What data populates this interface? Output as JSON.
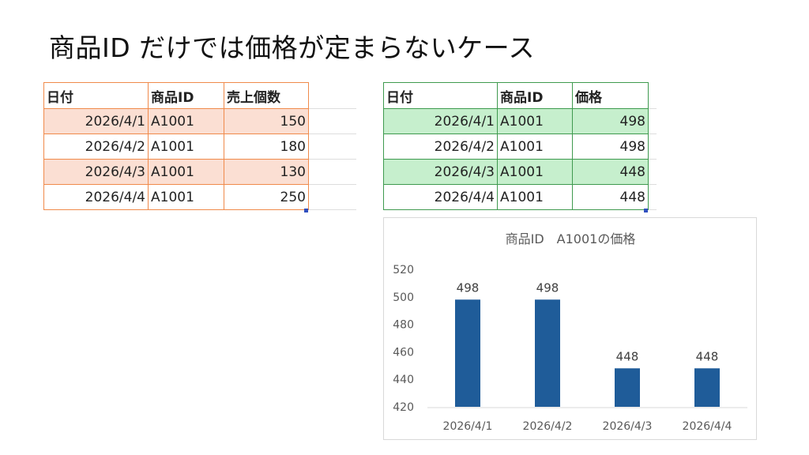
{
  "title": "商品ID だけでは価格が定まらないケース",
  "sales_table": {
    "headers": [
      "日付",
      "商品ID",
      "売上個数"
    ],
    "rows": [
      [
        "2026/4/1",
        "A1001",
        "150"
      ],
      [
        "2026/4/2",
        "A1001",
        "180"
      ],
      [
        "2026/4/3",
        "A1001",
        "130"
      ],
      [
        "2026/4/4",
        "A1001",
        "250"
      ]
    ],
    "highlight_color": "#fbdfd3",
    "border_color": "#f08a4b"
  },
  "price_table": {
    "headers": [
      "日付",
      "商品ID",
      "価格"
    ],
    "rows": [
      [
        "2026/4/1",
        "A1001",
        "498"
      ],
      [
        "2026/4/2",
        "A1001",
        "498"
      ],
      [
        "2026/4/3",
        "A1001",
        "448"
      ],
      [
        "2026/4/4",
        "A1001",
        "448"
      ]
    ],
    "highlight_color": "#c6efcd",
    "border_color": "#3f9a4f"
  },
  "chart_data": {
    "type": "bar",
    "title": "商品ID　A1001の価格",
    "categories": [
      "2026/4/1",
      "2026/4/2",
      "2026/4/3",
      "2026/4/4"
    ],
    "values": [
      498,
      498,
      448,
      448
    ],
    "ylim": [
      420,
      520
    ],
    "yticks": [
      "420",
      "440",
      "460",
      "480",
      "500",
      "520"
    ],
    "grid": false,
    "data_labels": true,
    "bar_color": "#1f5c99"
  }
}
